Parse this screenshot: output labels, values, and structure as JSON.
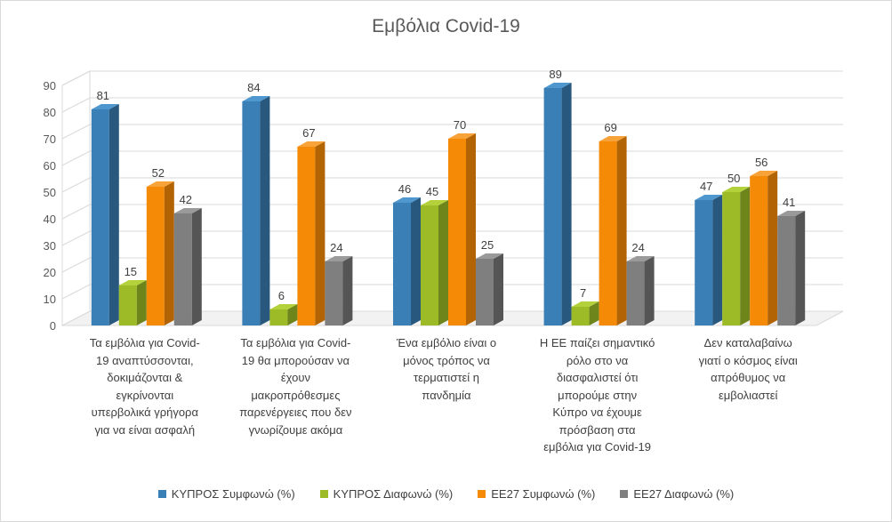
{
  "chart_data": {
    "type": "bar",
    "title": "Εμβόλια Covid-19",
    "ylim": [
      0,
      90
    ],
    "yticks": [
      0,
      10,
      20,
      30,
      40,
      50,
      60,
      70,
      80,
      90
    ],
    "grid": true,
    "legend_position": "bottom",
    "categories": [
      "Τα εμβόλια για Covid-19 αναπτύσσονται, δοκιμάζονται & εγκρίνονται υπερβολικά γρήγορα για να είναι ασφαλή",
      "Τα εμβόλια για Covid-19 θα μπορούσαν να έχουν μακροπρόθεσμες παρενέργειες που δεν γνωρίζουμε ακόμα",
      "Ένα εμβόλιο είναι ο μόνος τρόπος να τερματιστεί η πανδημία",
      "Η ΕΕ παίζει σημαντικό ρόλο στο να διασφαλιστεί ότι μπορούμε στην Κύπρο να έχουμε πρόσβαση στα εμβόλια για Covid-19",
      "Δεν καταλαβαίνω γιατί ο κόσμος είναι απρόθυμος να εμβολιαστεί"
    ],
    "category_lines": [
      [
        "Τα εμβόλια για Covid-",
        "19 αναπτύσσονται,",
        "δοκιμάζονται &",
        "εγκρίνονται",
        "υπερβολικά γρήγορα",
        "για να είναι ασφαλή"
      ],
      [
        "Τα εμβόλια για Covid-",
        "19 θα μπορούσαν να",
        "έχουν",
        "μακροπρόθεσμες",
        "παρενέργειες που δεν",
        "γνωρίζουμε ακόμα"
      ],
      [
        "Ένα εμβόλιο είναι ο",
        "μόνος τρόπος να",
        "τερματιστεί η",
        "πανδημία"
      ],
      [
        "Η ΕΕ παίζει σημαντικό",
        "ρόλο στο να",
        "διασφαλιστεί ότι",
        "μπορούμε στην",
        "Κύπρο να έχουμε",
        "πρόσβαση στα",
        "εμβόλια για Covid-19"
      ],
      [
        "Δεν καταλαβαίνω",
        "γιατί ο κόσμος είναι",
        "απρόθυμος να",
        "εμβολιαστεί"
      ]
    ],
    "series": [
      {
        "name": "ΚΥΠΡΟΣ Συμφωνώ (%)",
        "color": "#3a7fb5",
        "side": "#28587e",
        "top": "#4e97cf",
        "values": [
          81,
          84,
          46,
          89,
          47
        ]
      },
      {
        "name": "ΚΥΠΡΟΣ Διαφωνώ (%)",
        "color": "#9cbb26",
        "side": "#6e851b",
        "top": "#b3d13a",
        "values": [
          15,
          6,
          45,
          7,
          50
        ]
      },
      {
        "name": "ΕΕ27 Συμφωνώ (%)",
        "color": "#f58a07",
        "side": "#b26404",
        "top": "#f8a33a",
        "values": [
          52,
          67,
          70,
          69,
          56
        ]
      },
      {
        "name": "ΕΕ27 Διαφωνώ (%)",
        "color": "#7f7f7f",
        "side": "#555555",
        "top": "#9a9a9a",
        "values": [
          42,
          24,
          25,
          24,
          41
        ]
      }
    ]
  }
}
